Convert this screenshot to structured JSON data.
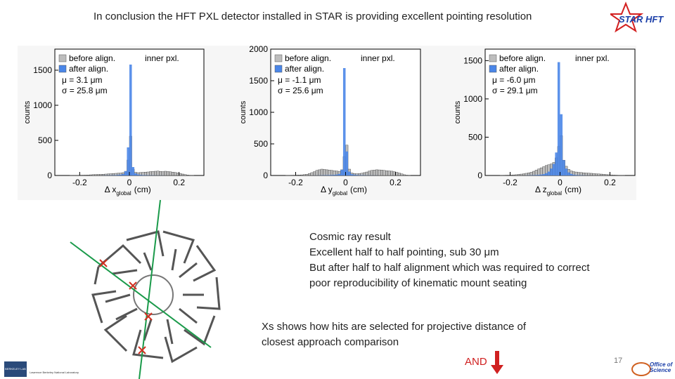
{
  "title": "In conclusion the HFT PXL detector installed in STAR is providing excellent pointing resolution",
  "logo": "STAR HFT",
  "charts": [
    {
      "type": "histogram",
      "ylabel": "counts",
      "xlabel": [
        "Δ x",
        "global",
        "(cm)"
      ],
      "annotation": "inner pxl.",
      "stats": [
        "μ = 3.1 μm",
        "σ = 25.8 μm"
      ],
      "xlim": [
        -0.3,
        0.3
      ],
      "xticks": [
        -0.2,
        0,
        0.2
      ],
      "ylim": [
        0,
        1800
      ],
      "yticks": [
        0,
        500,
        1000,
        1500
      ],
      "bins": [
        -0.3,
        -0.29,
        -0.28,
        -0.27,
        -0.26,
        -0.25,
        -0.24,
        -0.23,
        -0.22,
        -0.21,
        -0.2,
        -0.19,
        -0.18,
        -0.17,
        -0.16,
        -0.15,
        -0.14,
        -0.13,
        -0.12,
        -0.11,
        -0.1,
        -0.09,
        -0.08,
        -0.07,
        -0.06,
        -0.05,
        -0.04,
        -0.03,
        -0.02,
        -0.01,
        0,
        0.01,
        0.02,
        0.03,
        0.04,
        0.05,
        0.06,
        0.07,
        0.08,
        0.09,
        0.1,
        0.11,
        0.12,
        0.13,
        0.14,
        0.15,
        0.16,
        0.17,
        0.18,
        0.19,
        0.2,
        0.21,
        0.22,
        0.23,
        0.24,
        0.25,
        0.26,
        0.27,
        0.28,
        0.29,
        0.3
      ],
      "series": [
        {
          "name": "before align.",
          "color": "#bdbdbd",
          "values": [
            0,
            0,
            0,
            0,
            0,
            0,
            2,
            2,
            3,
            3,
            4,
            5,
            6,
            8,
            10,
            12,
            14,
            15,
            16,
            18,
            20,
            22,
            25,
            28,
            30,
            32,
            35,
            40,
            60,
            220,
            560,
            90,
            45,
            40,
            42,
            45,
            48,
            50,
            55,
            58,
            60,
            62,
            58,
            55,
            60,
            56,
            52,
            48,
            42,
            35,
            28,
            20,
            12,
            6,
            3,
            2,
            0,
            0,
            0,
            0
          ]
        },
        {
          "name": "after align.",
          "color": "#4a86e8",
          "values": [
            0,
            0,
            0,
            0,
            0,
            0,
            0,
            0,
            0,
            0,
            0,
            0,
            0,
            0,
            0,
            0,
            0,
            0,
            0,
            1,
            2,
            2,
            3,
            4,
            5,
            8,
            12,
            20,
            60,
            400,
            1580,
            120,
            30,
            15,
            8,
            5,
            4,
            3,
            2,
            2,
            1,
            1,
            1,
            1,
            0,
            0,
            0,
            0,
            0,
            0,
            0,
            0,
            0,
            0,
            0,
            0,
            0,
            0,
            0,
            0
          ]
        }
      ]
    },
    {
      "type": "histogram",
      "ylabel": "counts",
      "xlabel": [
        "Δ y",
        "global",
        "(cm)"
      ],
      "annotation": "inner pxl.",
      "stats": [
        "μ = -1.1 μm",
        "σ = 25.6 μm"
      ],
      "xlim": [
        -0.3,
        0.3
      ],
      "xticks": [
        -0.2,
        0,
        0.2
      ],
      "ylim": [
        0,
        2000
      ],
      "yticks": [
        0,
        500,
        1000,
        1500,
        2000
      ],
      "bins": [
        -0.3,
        -0.29,
        -0.28,
        -0.27,
        -0.26,
        -0.25,
        -0.24,
        -0.23,
        -0.22,
        -0.21,
        -0.2,
        -0.19,
        -0.18,
        -0.17,
        -0.16,
        -0.15,
        -0.14,
        -0.13,
        -0.12,
        -0.11,
        -0.1,
        -0.09,
        -0.08,
        -0.07,
        -0.06,
        -0.05,
        -0.04,
        -0.03,
        -0.02,
        -0.01,
        0,
        0.01,
        0.02,
        0.03,
        0.04,
        0.05,
        0.06,
        0.07,
        0.08,
        0.09,
        0.1,
        0.11,
        0.12,
        0.13,
        0.14,
        0.15,
        0.16,
        0.17,
        0.18,
        0.19,
        0.2,
        0.21,
        0.22,
        0.23,
        0.24,
        0.25,
        0.26,
        0.27,
        0.28,
        0.29,
        0.3
      ],
      "series": [
        {
          "name": "before align.",
          "color": "#bdbdbd",
          "values": [
            0,
            0,
            0,
            0,
            0,
            0,
            2,
            3,
            4,
            5,
            6,
            8,
            10,
            14,
            20,
            30,
            45,
            60,
            80,
            90,
            100,
            95,
            90,
            85,
            80,
            75,
            70,
            65,
            90,
            300,
            480,
            100,
            40,
            30,
            28,
            30,
            35,
            45,
            55,
            70,
            80,
            85,
            90,
            88,
            85,
            80,
            75,
            72,
            68,
            60,
            50,
            38,
            25,
            12,
            5,
            2,
            0,
            0,
            0,
            0
          ]
        },
        {
          "name": "after align.",
          "color": "#4a86e8",
          "values": [
            0,
            0,
            0,
            0,
            0,
            0,
            0,
            0,
            0,
            0,
            0,
            0,
            0,
            0,
            0,
            0,
            0,
            1,
            1,
            2,
            3,
            4,
            5,
            6,
            8,
            10,
            15,
            25,
            90,
            1700,
            380,
            60,
            20,
            12,
            8,
            5,
            4,
            3,
            2,
            2,
            1,
            1,
            1,
            0,
            0,
            0,
            0,
            0,
            0,
            0,
            0,
            0,
            0,
            0,
            0,
            0,
            0,
            0,
            0,
            0
          ]
        }
      ]
    },
    {
      "type": "histogram",
      "ylabel": "counts",
      "xlabel": [
        "Δ z",
        "global",
        "(cm)"
      ],
      "annotation": "inner pxl.",
      "stats": [
        "μ = -6.0 μm",
        "σ = 29.1 μm"
      ],
      "xlim": [
        -0.3,
        0.3
      ],
      "xticks": [
        -0.2,
        0,
        0.2
      ],
      "ylim": [
        0,
        1650
      ],
      "yticks": [
        0,
        500,
        1000,
        1500
      ],
      "bins": [
        -0.3,
        -0.29,
        -0.28,
        -0.27,
        -0.26,
        -0.25,
        -0.24,
        -0.23,
        -0.22,
        -0.21,
        -0.2,
        -0.19,
        -0.18,
        -0.17,
        -0.16,
        -0.15,
        -0.14,
        -0.13,
        -0.12,
        -0.11,
        -0.1,
        -0.09,
        -0.08,
        -0.07,
        -0.06,
        -0.05,
        -0.04,
        -0.03,
        -0.02,
        -0.01,
        0,
        0.01,
        0.02,
        0.03,
        0.04,
        0.05,
        0.06,
        0.07,
        0.08,
        0.09,
        0.1,
        0.11,
        0.12,
        0.13,
        0.14,
        0.15,
        0.16,
        0.17,
        0.18,
        0.19,
        0.2,
        0.21,
        0.22,
        0.23,
        0.24,
        0.25,
        0.26,
        0.27,
        0.28,
        0.29,
        0.3
      ],
      "series": [
        {
          "name": "before align.",
          "color": "#bdbdbd",
          "values": [
            0,
            0,
            0,
            0,
            0,
            0,
            2,
            3,
            4,
            5,
            6,
            8,
            10,
            14,
            18,
            22,
            28,
            35,
            42,
            55,
            70,
            85,
            100,
            115,
            130,
            140,
            150,
            170,
            230,
            380,
            520,
            200,
            120,
            80,
            60,
            50,
            45,
            40,
            38,
            35,
            32,
            30,
            28,
            25,
            22,
            20,
            18,
            15,
            12,
            10,
            8,
            6,
            4,
            3,
            2,
            1,
            0,
            0,
            0,
            0
          ]
        },
        {
          "name": "after align.",
          "color": "#4a86e8",
          "values": [
            0,
            0,
            0,
            0,
            0,
            0,
            0,
            0,
            0,
            0,
            0,
            0,
            0,
            0,
            0,
            0,
            1,
            2,
            3,
            4,
            6,
            8,
            12,
            18,
            30,
            50,
            90,
            150,
            300,
            1480,
            800,
            200,
            90,
            40,
            20,
            10,
            6,
            4,
            3,
            2,
            1,
            1,
            0,
            0,
            0,
            0,
            0,
            0,
            0,
            0,
            0,
            0,
            0,
            0,
            0,
            0,
            0,
            0,
            0,
            0
          ]
        }
      ]
    }
  ],
  "notes": [
    "Cosmic ray result",
    "Excellent half to half pointing, sub 30 μm",
    "But after half to half alignment which was required to correct poor reproducibility of kinematic mount seating"
  ],
  "selection_note": "Xs shows how hits are selected for projective distance of closest approach comparison",
  "and_label": "AND",
  "page_number": "17",
  "footer_left": [
    "BERKELEY LAB",
    "Lawrence Berkeley National Laboratory"
  ],
  "footer_right": [
    "Office of",
    "Science"
  ]
}
